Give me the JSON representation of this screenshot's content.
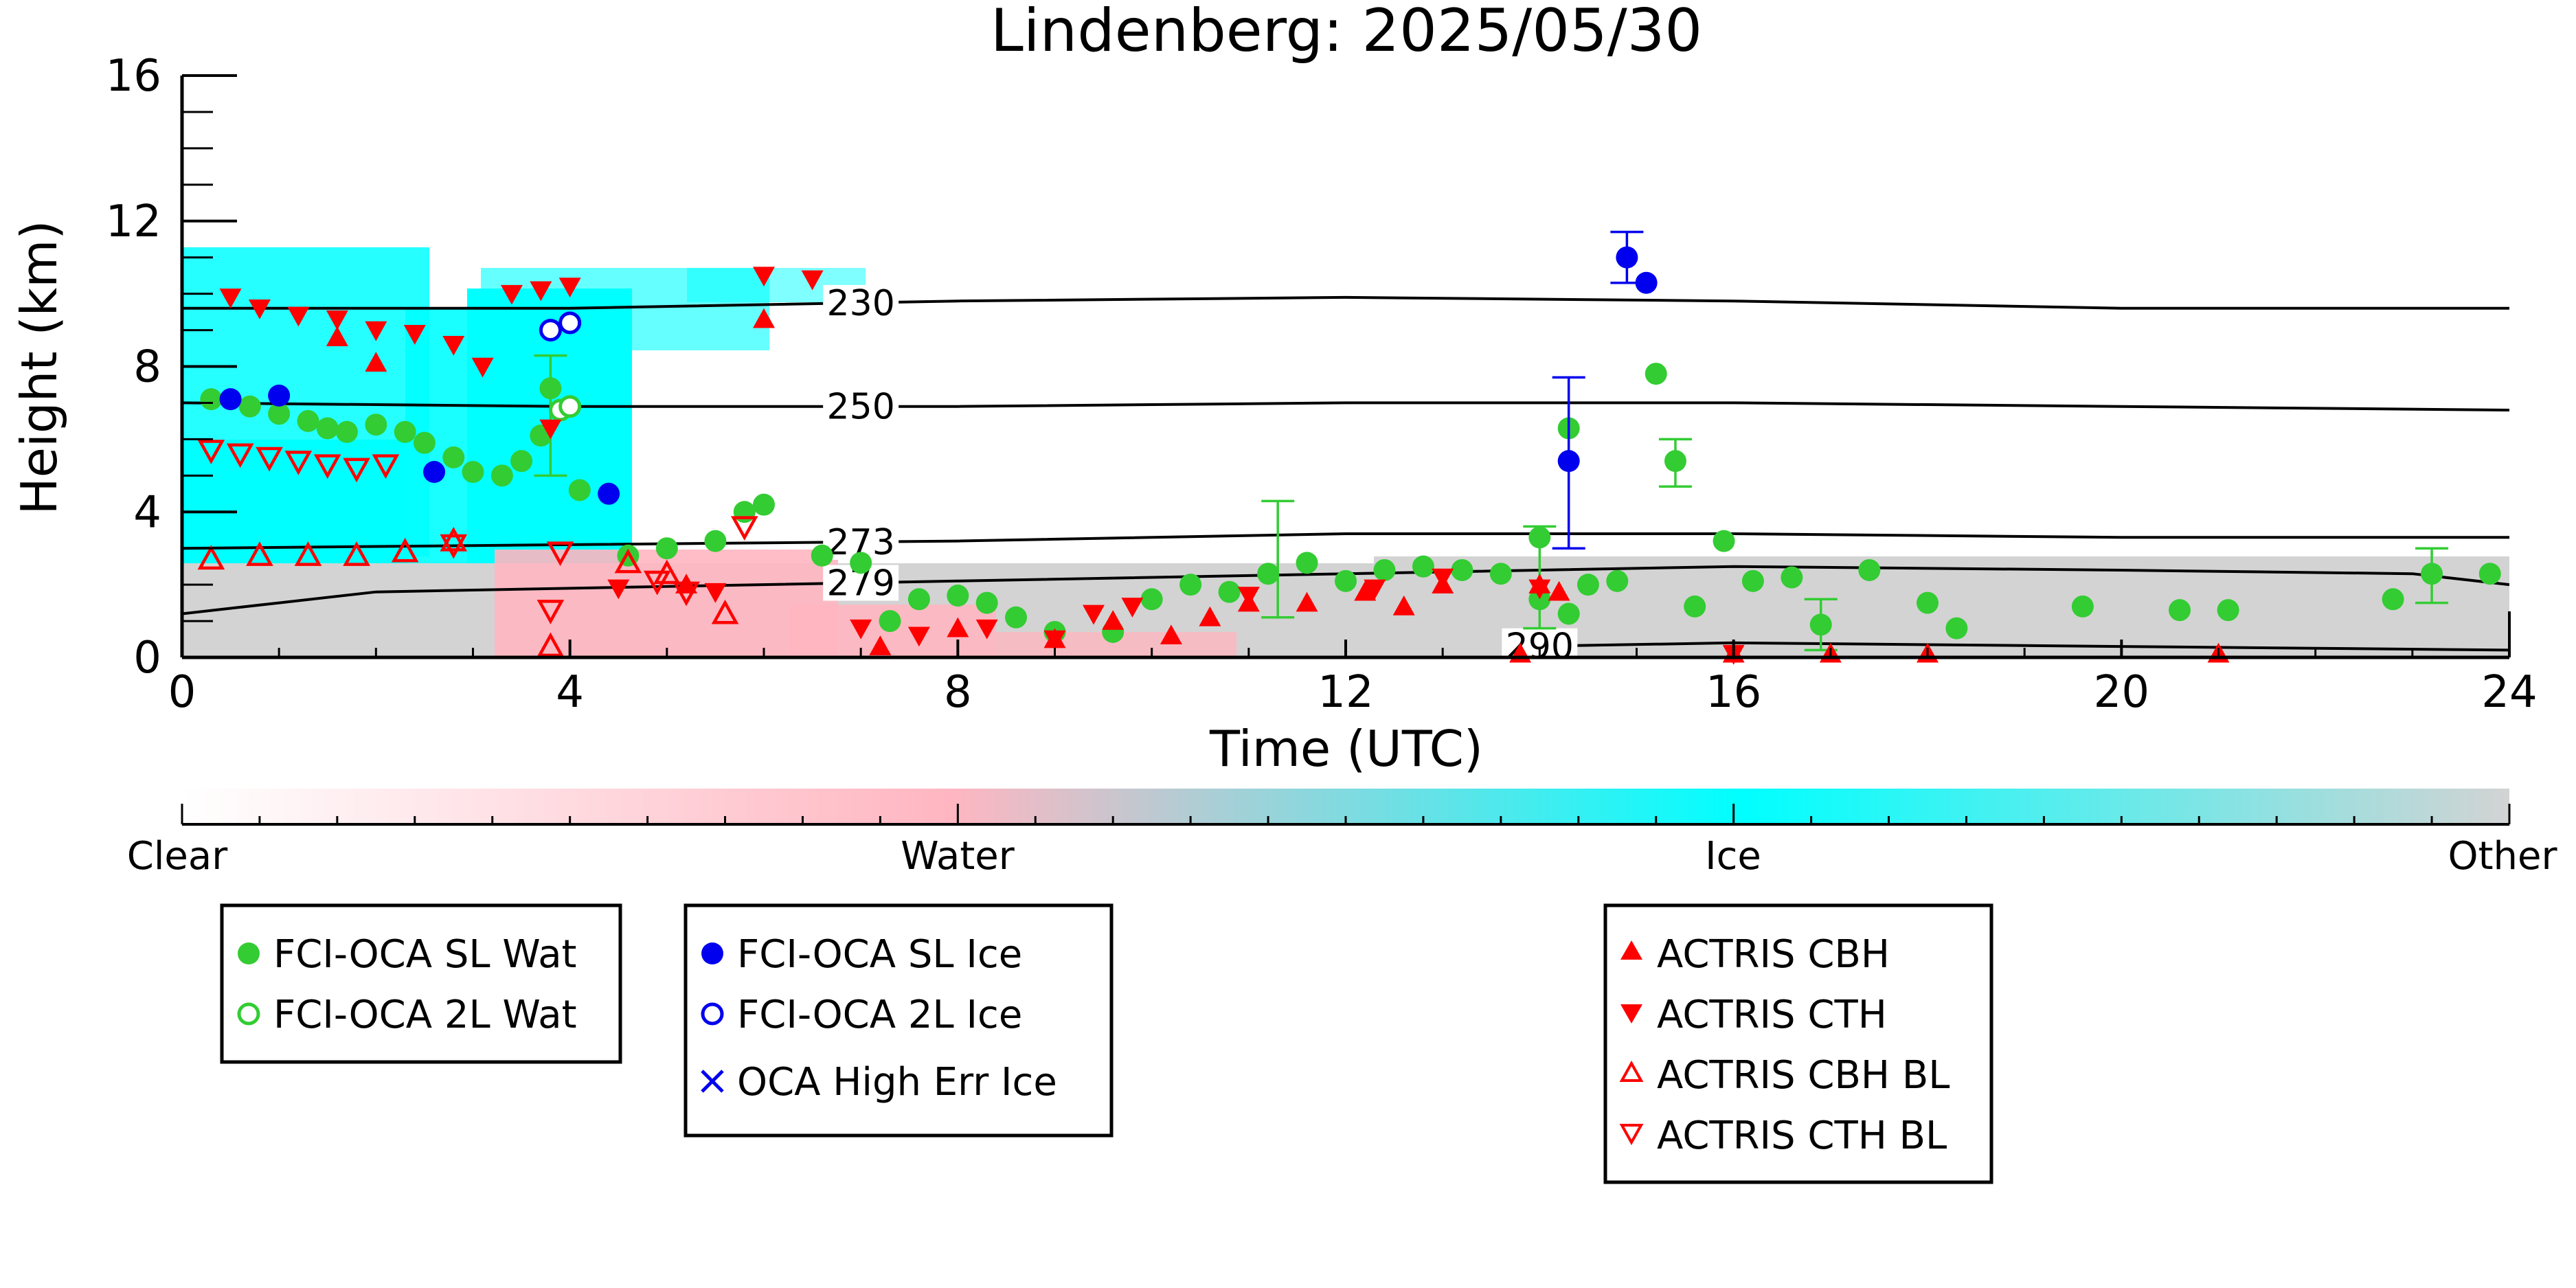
{
  "chart_data": {
    "type": "scatter",
    "title": "Lindenberg: 2025/05/30",
    "xlabel": "Time (UTC)",
    "ylabel": "Height (km)",
    "xlim": [
      0,
      24
    ],
    "ylim": [
      0,
      16
    ],
    "xticks": [
      0,
      4,
      8,
      12,
      16,
      20,
      24
    ],
    "yticks": [
      0,
      4,
      8,
      12,
      16
    ],
    "grid": false,
    "colorbar": {
      "labels": [
        "Clear",
        "Water",
        "Ice",
        "Other"
      ],
      "colors": [
        "#ffffff",
        "#ffb6c1",
        "#00ffff",
        "#d3d3d3"
      ]
    },
    "isotherms": [
      {
        "label": "230",
        "points": [
          [
            0,
            9.6
          ],
          [
            4,
            9.6
          ],
          [
            8,
            9.8
          ],
          [
            12,
            9.9
          ],
          [
            16,
            9.8
          ],
          [
            20,
            9.6
          ],
          [
            24,
            9.6
          ]
        ]
      },
      {
        "label": "250",
        "points": [
          [
            0,
            7.0
          ],
          [
            4,
            6.9
          ],
          [
            8,
            6.9
          ],
          [
            12,
            7.0
          ],
          [
            16,
            7.0
          ],
          [
            20,
            6.9
          ],
          [
            24,
            6.8
          ]
        ]
      },
      {
        "label": "273",
        "points": [
          [
            0,
            3.0
          ],
          [
            4,
            3.1
          ],
          [
            8,
            3.2
          ],
          [
            12,
            3.4
          ],
          [
            16,
            3.4
          ],
          [
            20,
            3.3
          ],
          [
            24,
            3.3
          ]
        ]
      },
      {
        "label": "279",
        "points": [
          [
            0,
            1.2
          ],
          [
            1,
            1.5
          ],
          [
            2,
            1.8
          ],
          [
            4,
            1.9
          ],
          [
            8,
            2.1
          ],
          [
            12,
            2.3
          ],
          [
            16,
            2.5
          ],
          [
            20,
            2.4
          ],
          [
            23,
            2.3
          ],
          [
            24,
            2.0
          ]
        ]
      },
      {
        "label": "290",
        "points": [
          [
            13.8,
            0.3
          ],
          [
            16,
            0.4
          ],
          [
            20,
            0.3
          ],
          [
            24,
            0.2
          ]
        ]
      }
    ],
    "series": [
      {
        "name": "FCI-OCA SL Wat",
        "color": "#33cc33",
        "marker": "circle",
        "fill": true,
        "points": [
          [
            0.3,
            7.1
          ],
          [
            0.7,
            6.9
          ],
          [
            1.0,
            6.7
          ],
          [
            1.3,
            6.5
          ],
          [
            1.5,
            6.3
          ],
          [
            1.7,
            6.2
          ],
          [
            2.0,
            6.4
          ],
          [
            2.3,
            6.2
          ],
          [
            2.5,
            5.9
          ],
          [
            2.8,
            5.5
          ],
          [
            3.0,
            5.1
          ],
          [
            3.3,
            5.0
          ],
          [
            3.5,
            5.4
          ],
          [
            3.7,
            6.1
          ],
          [
            3.8,
            7.4
          ],
          [
            4.1,
            4.6
          ],
          [
            4.6,
            2.8
          ],
          [
            5.0,
            3.0
          ],
          [
            5.5,
            3.2
          ],
          [
            5.8,
            4.0
          ],
          [
            6.0,
            4.2
          ],
          [
            6.6,
            2.8
          ],
          [
            7.0,
            2.6
          ],
          [
            7.3,
            1.0
          ],
          [
            7.6,
            1.6
          ],
          [
            8.0,
            1.7
          ],
          [
            8.3,
            1.5
          ],
          [
            8.6,
            1.1
          ],
          [
            9.0,
            0.7
          ],
          [
            9.6,
            0.7
          ],
          [
            10.0,
            1.6
          ],
          [
            10.4,
            2.0
          ],
          [
            10.8,
            1.8
          ],
          [
            11.2,
            2.3
          ],
          [
            11.6,
            2.6
          ],
          [
            12.0,
            2.1
          ],
          [
            12.4,
            2.4
          ],
          [
            12.8,
            2.5
          ],
          [
            13.2,
            2.4
          ],
          [
            13.6,
            2.3
          ],
          [
            14.0,
            1.6
          ],
          [
            14.3,
            1.2
          ],
          [
            14.5,
            2.0
          ],
          [
            14.8,
            2.1
          ],
          [
            15.2,
            7.8
          ],
          [
            15.6,
            1.4
          ],
          [
            15.9,
            3.2
          ],
          [
            16.2,
            2.1
          ],
          [
            16.6,
            2.2
          ],
          [
            16.9,
            0.9
          ],
          [
            17.4,
            2.4
          ],
          [
            18.0,
            1.5
          ],
          [
            18.3,
            0.8
          ],
          [
            19.6,
            1.4
          ],
          [
            20.6,
            1.3
          ],
          [
            21.1,
            1.3
          ],
          [
            22.8,
            1.6
          ],
          [
            23.2,
            2.3
          ],
          [
            23.8,
            2.3
          ],
          [
            14.3,
            6.3
          ],
          [
            14.0,
            3.3
          ],
          [
            15.4,
            5.4
          ]
        ],
        "errbars": [
          [
            3.8,
            5.0,
            8.3
          ],
          [
            11.3,
            1.1,
            4.3
          ],
          [
            14.0,
            0.8,
            3.6
          ],
          [
            16.9,
            0.2,
            1.6
          ],
          [
            23.2,
            1.5,
            3.0
          ],
          [
            15.4,
            4.7,
            6.0
          ]
        ]
      },
      {
        "name": "FCI-OCA 2L Wat",
        "color": "#33cc33",
        "marker": "circle",
        "fill": false,
        "points": [
          [
            3.9,
            6.8
          ],
          [
            4.0,
            6.9
          ]
        ]
      },
      {
        "name": "FCI-OCA SL Ice",
        "color": "#0000ee",
        "marker": "circle",
        "fill": true,
        "points": [
          [
            0.5,
            7.1
          ],
          [
            1.0,
            7.2
          ],
          [
            2.6,
            5.1
          ],
          [
            4.4,
            4.5
          ],
          [
            14.3,
            5.4
          ],
          [
            14.9,
            11.0
          ],
          [
            15.1,
            10.3
          ]
        ],
        "errbars": [
          [
            14.3,
            3.0,
            7.7
          ],
          [
            14.9,
            10.3,
            11.7
          ]
        ]
      },
      {
        "name": "FCI-OCA 2L Ice",
        "color": "#0000ee",
        "marker": "circle",
        "fill": false,
        "points": [
          [
            3.8,
            9.0
          ],
          [
            4.0,
            9.2
          ]
        ]
      },
      {
        "name": "OCA High Err Ice",
        "color": "#0000ee",
        "marker": "x",
        "fill": true,
        "points": []
      },
      {
        "name": "ACTRIS CBH",
        "color": "#ff0000",
        "marker": "triangle-up",
        "fill": true,
        "points": [
          [
            1.6,
            8.8
          ],
          [
            2.0,
            8.1
          ],
          [
            5.2,
            2.0
          ],
          [
            6.0,
            9.3
          ],
          [
            7.2,
            0.3
          ],
          [
            8.0,
            0.8
          ],
          [
            9.0,
            0.5
          ],
          [
            9.6,
            1.0
          ],
          [
            10.2,
            0.6
          ],
          [
            10.6,
            1.1
          ],
          [
            11.0,
            1.5
          ],
          [
            11.6,
            1.5
          ],
          [
            12.2,
            1.8
          ],
          [
            12.6,
            1.4
          ],
          [
            13.0,
            2.0
          ],
          [
            13.8,
            0.1
          ],
          [
            14.0,
            2.0
          ],
          [
            14.2,
            1.8
          ],
          [
            16.0,
            0.1
          ],
          [
            17.0,
            0.1
          ],
          [
            18.0,
            0.1
          ],
          [
            21.0,
            0.1
          ]
        ]
      },
      {
        "name": "ACTRIS CTH",
        "color": "#ff0000",
        "marker": "triangle-down",
        "fill": true,
        "points": [
          [
            0.5,
            9.9
          ],
          [
            0.8,
            9.6
          ],
          [
            1.2,
            9.4
          ],
          [
            1.6,
            9.3
          ],
          [
            2.0,
            9.0
          ],
          [
            2.4,
            8.9
          ],
          [
            2.8,
            8.6
          ],
          [
            3.1,
            8.0
          ],
          [
            3.4,
            10.0
          ],
          [
            3.7,
            10.1
          ],
          [
            4.0,
            10.2
          ],
          [
            3.8,
            6.3
          ],
          [
            4.5,
            1.9
          ],
          [
            5.5,
            1.8
          ],
          [
            6.0,
            10.5
          ],
          [
            6.5,
            10.4
          ],
          [
            7.0,
            0.8
          ],
          [
            7.6,
            0.6
          ],
          [
            8.3,
            0.8
          ],
          [
            9.0,
            0.5
          ],
          [
            9.4,
            1.2
          ],
          [
            9.8,
            1.4
          ],
          [
            11.0,
            1.7
          ],
          [
            12.3,
            1.9
          ],
          [
            13.0,
            2.2
          ],
          [
            14.0,
            1.9
          ],
          [
            16.0,
            0.1
          ]
        ]
      },
      {
        "name": "ACTRIS CBH BL",
        "color": "#ff0000",
        "marker": "triangle-up",
        "fill": false,
        "points": [
          [
            0.3,
            2.7
          ],
          [
            0.8,
            2.8
          ],
          [
            1.3,
            2.8
          ],
          [
            1.8,
            2.8
          ],
          [
            2.3,
            2.9
          ],
          [
            2.8,
            3.2
          ],
          [
            3.8,
            0.3
          ],
          [
            4.6,
            2.6
          ],
          [
            5.0,
            2.3
          ],
          [
            5.6,
            1.2
          ]
        ]
      },
      {
        "name": "ACTRIS CTH BL",
        "color": "#ff0000",
        "marker": "triangle-down",
        "fill": false,
        "points": [
          [
            0.3,
            5.7
          ],
          [
            0.6,
            5.6
          ],
          [
            0.9,
            5.5
          ],
          [
            1.2,
            5.4
          ],
          [
            1.5,
            5.3
          ],
          [
            1.8,
            5.2
          ],
          [
            2.1,
            5.3
          ],
          [
            2.8,
            3.1
          ],
          [
            3.8,
            1.3
          ],
          [
            3.9,
            2.9
          ],
          [
            4.9,
            2.1
          ],
          [
            5.2,
            1.8
          ],
          [
            5.8,
            3.6
          ]
        ]
      }
    ]
  }
}
